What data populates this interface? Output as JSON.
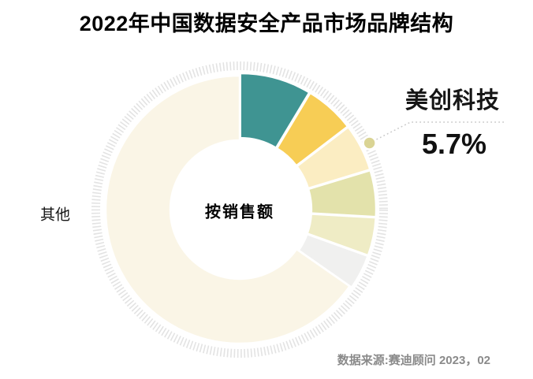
{
  "title": "2022年中国数据安全产品市场品牌结构",
  "source": "数据来源:赛迪顾问 2023，02",
  "chart_data": {
    "type": "pie",
    "subtype": "donut",
    "title": "2022年中国数据安全产品市场品牌结构",
    "center_label": "按销售额",
    "values_unit": "percent",
    "legend": "none",
    "segments": [
      {
        "name": "",
        "value": 8.6,
        "color": "#3F9492",
        "exploded": true,
        "highlighted": false
      },
      {
        "name": "",
        "value": 6.0,
        "color": "#F7CD55",
        "exploded": true,
        "highlighted": false
      },
      {
        "name": "美创科技",
        "value": 5.7,
        "color": "#FBEDC2",
        "exploded": true,
        "highlighted": true
      },
      {
        "name": "",
        "value": 5.6,
        "color": "#E3E2AB",
        "exploded": true,
        "highlighted": false
      },
      {
        "name": "",
        "value": 4.6,
        "color": "#EFECC5",
        "exploded": true,
        "highlighted": false
      },
      {
        "name": "",
        "value": 4.2,
        "color": "#F0F0EF",
        "exploded": true,
        "highlighted": false
      },
      {
        "name": "其他",
        "value": 65.3,
        "color": "#FAF5E6",
        "exploded": false,
        "highlighted": false
      }
    ],
    "annotations": {
      "highlight_label": "美创科技",
      "highlight_value": "5.7%",
      "others_label": "其他"
    },
    "styles": {
      "ring_color": "#E3E3E3",
      "marker_color": "#DAD494",
      "leader_color": "#C9C9C9",
      "gap_color": "#FFFFFF"
    }
  }
}
